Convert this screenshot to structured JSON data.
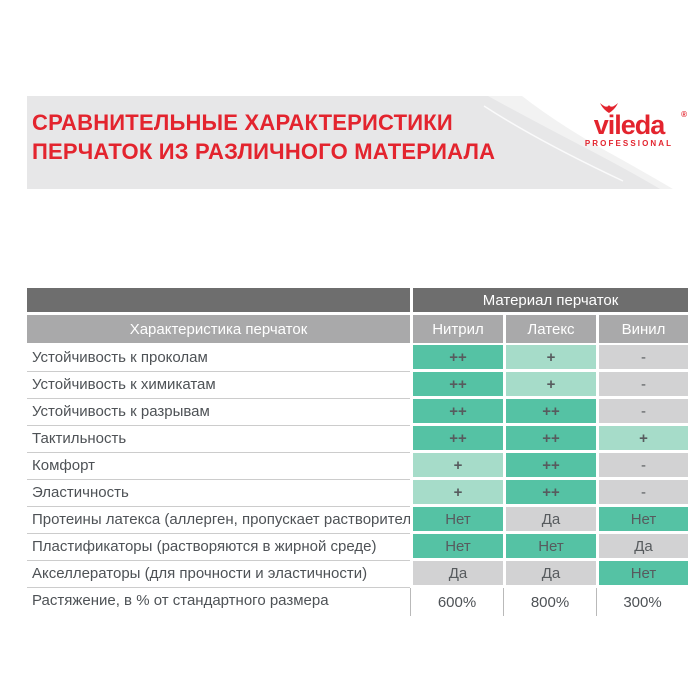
{
  "header": {
    "title_line1": "СРАВНИТЕЛЬНЫЕ ХАРАКТЕРИСТИКИ",
    "title_line2": "ПЕРЧАТОК ИЗ РАЗЛИЧНОГО МАТЕРИАЛА",
    "logo": {
      "brand": "vileda",
      "registered": "®",
      "subtitle": "PROFESSIONAL"
    }
  },
  "table": {
    "group_header": "Материал перчаток",
    "columns": [
      "Характеристика перчаток",
      "Нитрил",
      "Латекс",
      "Винил"
    ],
    "rows": [
      {
        "label": "Устойчивость к проколам",
        "cells": [
          {
            "text": "++",
            "tone": "strong"
          },
          {
            "text": "+",
            "tone": "light"
          },
          {
            "text": "-",
            "tone": "gray"
          }
        ]
      },
      {
        "label": "Устойчивость к химикатам",
        "cells": [
          {
            "text": "++",
            "tone": "strong"
          },
          {
            "text": "+",
            "tone": "light"
          },
          {
            "text": "-",
            "tone": "gray"
          }
        ]
      },
      {
        "label": "Устойчивость к разрывам",
        "cells": [
          {
            "text": "++",
            "tone": "strong"
          },
          {
            "text": "++",
            "tone": "strong"
          },
          {
            "text": "-",
            "tone": "gray"
          }
        ]
      },
      {
        "label": "Тактильность",
        "cells": [
          {
            "text": "++",
            "tone": "strong"
          },
          {
            "text": "++",
            "tone": "strong"
          },
          {
            "text": "+",
            "tone": "light"
          }
        ]
      },
      {
        "label": "Комфорт",
        "cells": [
          {
            "text": "+",
            "tone": "light"
          },
          {
            "text": "++",
            "tone": "strong"
          },
          {
            "text": "-",
            "tone": "gray"
          }
        ]
      },
      {
        "label": "Эластичность",
        "cells": [
          {
            "text": "+",
            "tone": "light"
          },
          {
            "text": "++",
            "tone": "strong"
          },
          {
            "text": "-",
            "tone": "gray"
          }
        ]
      },
      {
        "label": "Протеины латекса (аллерген, пропускает растворители)",
        "cells": [
          {
            "text": "Нет",
            "tone": "strong",
            "plainText": true
          },
          {
            "text": "Да",
            "tone": "gray",
            "plainText": true
          },
          {
            "text": "Нет",
            "tone": "strong",
            "plainText": true
          }
        ]
      },
      {
        "label": "Пластификаторы (растворяются в жирной среде)",
        "cells": [
          {
            "text": "Нет",
            "tone": "strong",
            "plainText": true
          },
          {
            "text": "Нет",
            "tone": "strong",
            "plainText": true
          },
          {
            "text": "Да",
            "tone": "gray",
            "plainText": true
          }
        ]
      },
      {
        "label": "Акселлераторы (для прочности и эластичности)",
        "cells": [
          {
            "text": "Да",
            "tone": "gray",
            "plainText": true
          },
          {
            "text": "Да",
            "tone": "gray",
            "plainText": true
          },
          {
            "text": "Нет",
            "tone": "strong",
            "plainText": true
          }
        ]
      },
      {
        "label": "Растяжение, в % от стандартного размера",
        "final": true,
        "cells": [
          {
            "text": "600%",
            "tone": "plain"
          },
          {
            "text": "800%",
            "tone": "plain"
          },
          {
            "text": "300%",
            "tone": "plain"
          }
        ]
      }
    ]
  },
  "colors": {
    "brand_red": "#e3242e",
    "banner_bg": "#e7e7e8",
    "header_dark": "#6e6e6e",
    "header_mid": "#a9a9aa",
    "teal": "#55c2a4",
    "teal_light": "#a6dcc9",
    "gray_cell": "#d2d2d3",
    "label_text": "#4e5256",
    "cell_text": "#575b5e",
    "hairline": "#cccccc",
    "sep_line": "#b9b9b9"
  }
}
